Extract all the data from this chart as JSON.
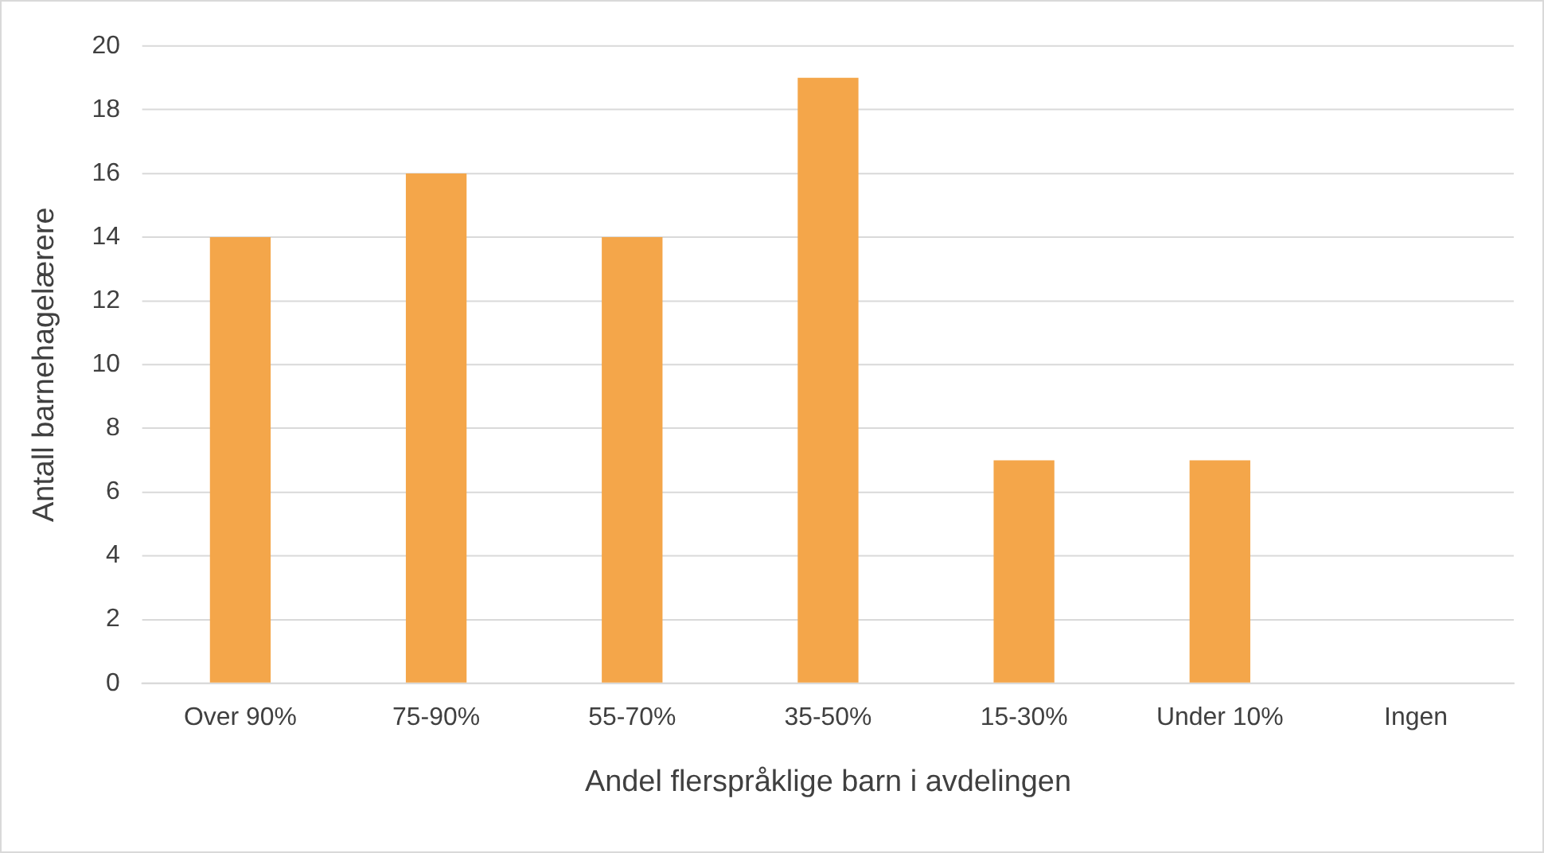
{
  "chart_data": {
    "type": "bar",
    "xlabel": "Andel flerspråklige barn i avdelingen",
    "ylabel": "Antall barnehagelærere",
    "categories": [
      "Over 90%",
      "75-90%",
      "55-70%",
      "35-50%",
      "15-30%",
      "Under 10%",
      "Ingen"
    ],
    "values": [
      14,
      16,
      14,
      19,
      7,
      7,
      0
    ],
    "color": "#f4a64a",
    "ylim": [
      0,
      20
    ],
    "yticks": [
      0,
      2,
      4,
      6,
      8,
      10,
      12,
      14,
      16,
      18,
      20
    ],
    "grid": "y",
    "legend": false
  }
}
